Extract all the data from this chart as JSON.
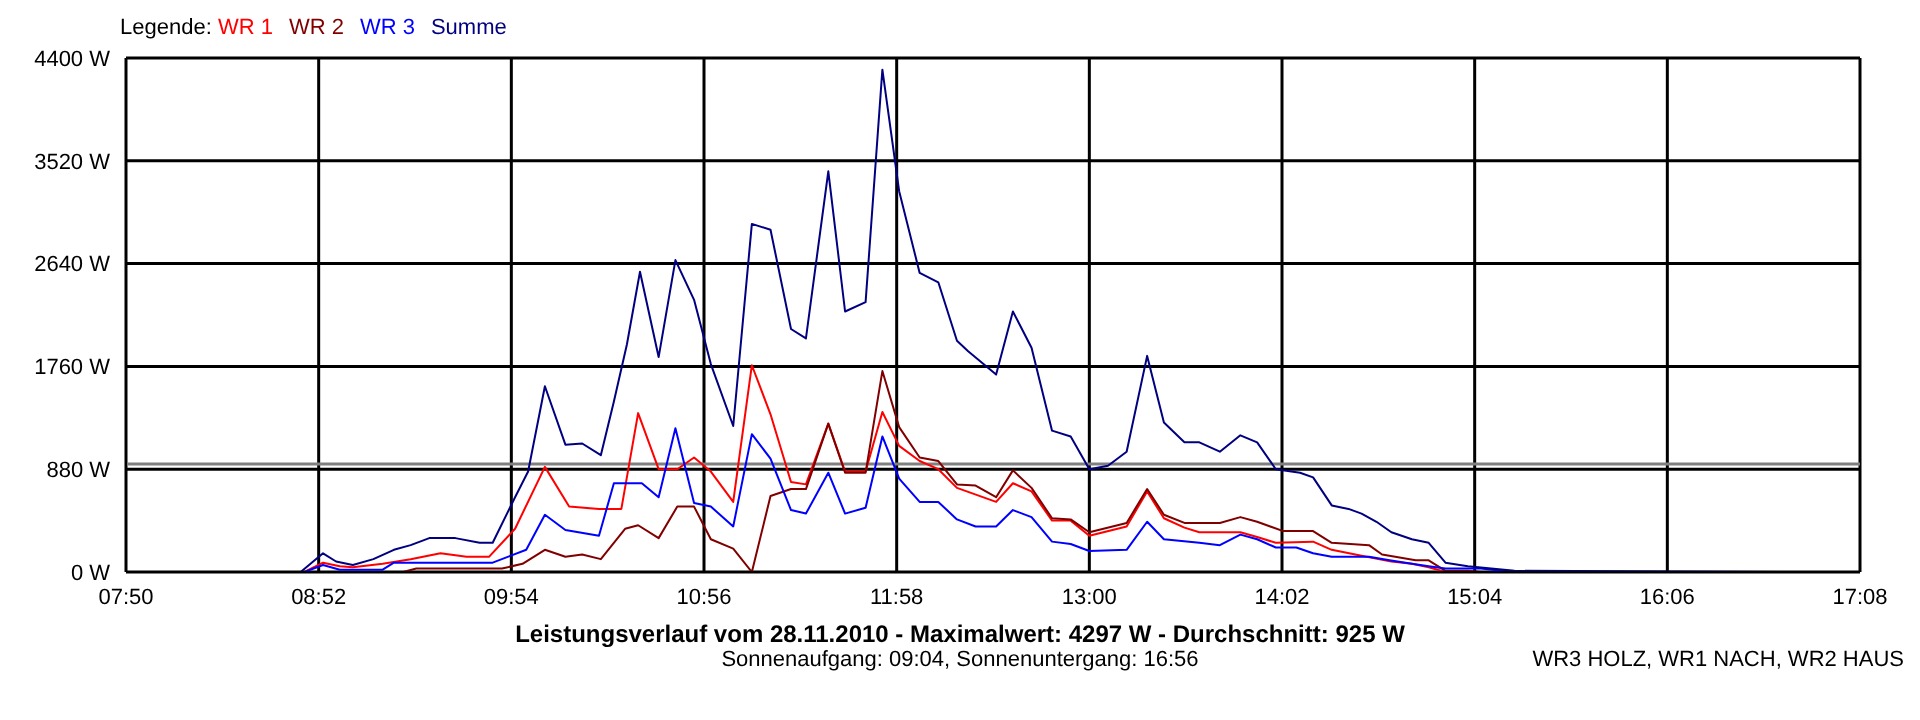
{
  "chart_data": {
    "type": "line",
    "title": "Leistungsverlauf vom 28.11.2010 - Maximalwert: 4297 W - Durchschnitt: 925 W",
    "subtitle": "Sonnenaufgang: 09:04, Sonnenuntergang: 16:56",
    "annotations": [
      "WR3 HOLZ, WR1 NACH, WR2 HAUS"
    ],
    "legend_title": "Legende:",
    "legend": "top left",
    "grid": true,
    "xlim": [
      7.8333,
      17.1333
    ],
    "xticks": [
      {
        "value": 7.8333,
        "label": "07:50"
      },
      {
        "value": 8.8667,
        "label": "08:52"
      },
      {
        "value": 9.9,
        "label": "09:54"
      },
      {
        "value": 10.9333,
        "label": "10:56"
      },
      {
        "value": 11.9667,
        "label": "11:58"
      },
      {
        "value": 13.0,
        "label": "13:00"
      },
      {
        "value": 14.0333,
        "label": "14:02"
      },
      {
        "value": 15.0667,
        "label": "15:04"
      },
      {
        "value": 16.1,
        "label": "16:06"
      },
      {
        "value": 17.1333,
        "label": "17:08"
      }
    ],
    "ylim": [
      0,
      4400
    ],
    "yticks": [
      {
        "value": 0,
        "label": "0 W"
      },
      {
        "value": 880,
        "label": "880 W"
      },
      {
        "value": 1760,
        "label": "1760 W"
      },
      {
        "value": 2640,
        "label": "2640 W"
      },
      {
        "value": 3520,
        "label": "3520 W"
      },
      {
        "value": 4400,
        "label": "4400 W"
      }
    ],
    "ref_lines": [
      {
        "axis": "y",
        "value": 925,
        "label": null,
        "color": "#808080"
      }
    ],
    "series": [
      {
        "name": "WR 1",
        "color": "#ff0000",
        "x": [
          8.63,
          8.79,
          8.89,
          8.98,
          9.05,
          9.21,
          9.36,
          9.52,
          9.66,
          9.78,
          9.92,
          10.08,
          10.21,
          10.37,
          10.49,
          10.58,
          10.69,
          10.79,
          10.88,
          10.97,
          11.09,
          11.19,
          11.29,
          11.4,
          11.48,
          11.6,
          11.69,
          11.8,
          11.89,
          11.98,
          12.09,
          12.19,
          12.29,
          12.5,
          12.59,
          12.69,
          12.8,
          12.9,
          13.0,
          13.2,
          13.31,
          13.4,
          13.51,
          13.59,
          13.81,
          13.9,
          14.0,
          14.2,
          14.3,
          14.46,
          14.62,
          14.73,
          14.82,
          14.91,
          15.28
        ],
        "values": [
          0,
          0,
          80,
          50,
          40,
          70,
          110,
          160,
          130,
          130,
          370,
          900,
          560,
          540,
          540,
          1360,
          880,
          880,
          980,
          860,
          600,
          1770,
          1350,
          770,
          750,
          1270,
          860,
          860,
          1370,
          1080,
          950,
          880,
          720,
          600,
          760,
          690,
          440,
          440,
          310,
          390,
          690,
          460,
          380,
          340,
          340,
          300,
          250,
          260,
          190,
          140,
          90,
          70,
          40,
          0,
          0
        ]
      },
      {
        "name": "WR 2",
        "color": "#800000",
        "x": [
          8.82,
          9.32,
          9.39,
          9.64,
          9.85,
          9.96,
          10.08,
          10.19,
          10.28,
          10.38,
          10.51,
          10.58,
          10.69,
          10.79,
          10.88,
          10.97,
          11.09,
          11.19,
          11.29,
          11.4,
          11.48,
          11.6,
          11.69,
          11.8,
          11.89,
          11.98,
          12.09,
          12.19,
          12.29,
          12.39,
          12.5,
          12.59,
          12.69,
          12.8,
          12.9,
          13.0,
          13.2,
          13.31,
          13.4,
          13.51,
          13.7,
          13.81,
          13.9,
          14.04,
          14.2,
          14.3,
          14.5,
          14.57,
          14.75,
          14.82,
          14.91,
          15.03,
          15.1,
          16.77
        ],
        "values": [
          0,
          0,
          30,
          30,
          30,
          70,
          190,
          130,
          150,
          110,
          370,
          400,
          290,
          560,
          560,
          280,
          200,
          0,
          650,
          710,
          710,
          1270,
          850,
          850,
          1720,
          1240,
          980,
          950,
          750,
          740,
          640,
          870,
          720,
          460,
          450,
          340,
          420,
          710,
          490,
          420,
          420,
          470,
          430,
          350,
          350,
          250,
          230,
          150,
          100,
          100,
          10,
          10,
          0,
          0
        ]
      },
      {
        "name": "WR 3",
        "color": "#0000ff",
        "x": [
          8.63,
          8.79,
          8.89,
          8.98,
          9.21,
          9.27,
          9.8,
          9.98,
          10.08,
          10.19,
          10.37,
          10.45,
          10.6,
          10.69,
          10.78,
          10.88,
          10.97,
          11.09,
          11.19,
          11.29,
          11.4,
          11.48,
          11.6,
          11.69,
          11.8,
          11.89,
          11.98,
          12.09,
          12.19,
          12.29,
          12.39,
          12.5,
          12.59,
          12.69,
          12.8,
          12.9,
          13.0,
          13.2,
          13.31,
          13.4,
          13.59,
          13.7,
          13.81,
          13.9,
          14.0,
          14.11,
          14.2,
          14.3,
          14.5,
          14.61,
          14.73,
          14.82,
          14.91,
          15.1,
          15.21,
          15.28,
          16.77
        ],
        "values": [
          0,
          0,
          60,
          20,
          20,
          80,
          80,
          190,
          490,
          360,
          310,
          760,
          760,
          640,
          1230,
          590,
          560,
          390,
          1180,
          970,
          530,
          500,
          850,
          500,
          550,
          1160,
          800,
          600,
          600,
          450,
          390,
          390,
          530,
          470,
          260,
          240,
          180,
          190,
          430,
          280,
          250,
          230,
          320,
          280,
          210,
          210,
          160,
          130,
          130,
          100,
          70,
          50,
          30,
          30,
          10,
          0,
          0
        ]
      },
      {
        "name": "Summe",
        "color": "#000080",
        "x": [
          8.63,
          8.77,
          8.89,
          8.96,
          9.05,
          9.16,
          9.27,
          9.36,
          9.46,
          9.6,
          9.73,
          9.8,
          9.92,
          9.99,
          10.08,
          10.19,
          10.28,
          10.38,
          10.45,
          10.52,
          10.59,
          10.69,
          10.78,
          10.88,
          10.97,
          11.09,
          11.19,
          11.29,
          11.4,
          11.48,
          11.6,
          11.69,
          11.8,
          11.89,
          11.98,
          12.09,
          12.19,
          12.29,
          12.35,
          12.5,
          12.59,
          12.69,
          12.8,
          12.9,
          13.0,
          13.1,
          13.2,
          13.31,
          13.4,
          13.51,
          13.59,
          13.7,
          13.81,
          13.9,
          14.0,
          14.13,
          14.2,
          14.3,
          14.39,
          14.46,
          14.54,
          14.62,
          14.73,
          14.82,
          14.91,
          15.03,
          15.28,
          16.77
        ],
        "values": [
          0,
          0,
          160,
          90,
          60,
          110,
          190,
          230,
          290,
          290,
          250,
          250,
          640,
          860,
          1590,
          1090,
          1100,
          1000,
          1460,
          1950,
          2570,
          1840,
          2670,
          2330,
          1780,
          1250,
          2980,
          2930,
          2080,
          2000,
          3430,
          2230,
          2310,
          4300,
          3260,
          2560,
          2480,
          1980,
          1890,
          1690,
          2230,
          1920,
          1210,
          1160,
          880,
          910,
          1030,
          1850,
          1280,
          1110,
          1110,
          1030,
          1170,
          1110,
          880,
          850,
          810,
          570,
          540,
          500,
          430,
          340,
          280,
          250,
          80,
          50,
          10,
          0
        ]
      }
    ]
  }
}
